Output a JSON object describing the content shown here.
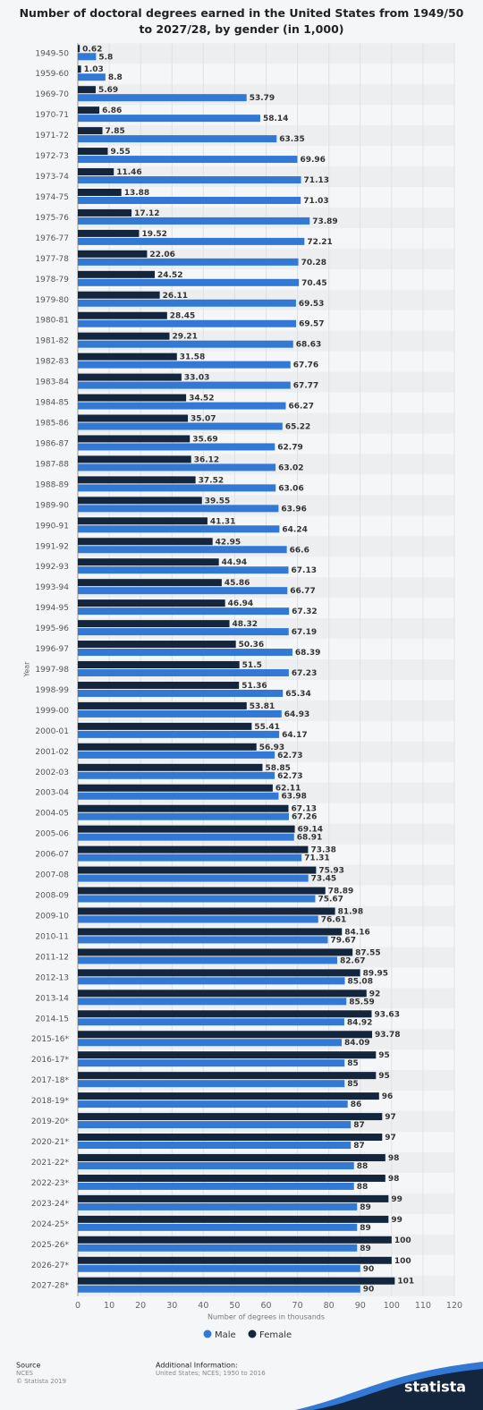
{
  "chart_data": {
    "type": "bar",
    "orientation": "horizontal",
    "title": "Number of doctoral degrees earned in the United States from 1949/50 to 2027/28, by gender (in 1,000)",
    "x_label": "Number of degrees in thousands",
    "y_label": "Year",
    "categories": [
      "1949-50",
      "1959-60",
      "1969-70",
      "1970-71",
      "1971-72",
      "1972-73",
      "1973-74",
      "1974-75",
      "1975-76",
      "1976-77",
      "1977-78",
      "1978-79",
      "1979-80",
      "1980-81",
      "1981-82",
      "1982-83",
      "1983-84",
      "1984-85",
      "1985-86",
      "1986-87",
      "1987-88",
      "1988-89",
      "1989-90",
      "1990-91",
      "1991-92",
      "1992-93",
      "1993-94",
      "1994-95",
      "1995-96",
      "1996-97",
      "1997-98",
      "1998-99",
      "1999-00",
      "2000-01",
      "2001-02",
      "2002-03",
      "2003-04",
      "2004-05",
      "2005-06",
      "2006-07",
      "2007-08",
      "2008-09",
      "2009-10",
      "2010-11",
      "2011-12",
      "2012-13",
      "2013-14",
      "2014-15",
      "2015-16*",
      "2016-17*",
      "2017-18*",
      "2018-19*",
      "2019-20*",
      "2020-21*",
      "2021-22*",
      "2022-23*",
      "2023-24*",
      "2024-25*",
      "2025-26*",
      "2026-27*",
      "2027-28*"
    ],
    "series": [
      {
        "name": "Male",
        "color": "#3279d6",
        "values": [
          5.8,
          8.8,
          53.79,
          58.14,
          63.35,
          69.96,
          71.13,
          71.03,
          73.89,
          72.21,
          70.28,
          70.45,
          69.53,
          69.57,
          68.63,
          67.76,
          67.77,
          66.27,
          65.22,
          62.79,
          63.02,
          63.06,
          63.96,
          64.24,
          66.6,
          67.13,
          66.77,
          67.32,
          67.19,
          68.39,
          67.23,
          65.34,
          64.93,
          64.17,
          62.73,
          62.73,
          63.98,
          67.26,
          68.91,
          71.31,
          73.45,
          75.67,
          76.61,
          79.67,
          82.67,
          85.08,
          85.59,
          84.92,
          84.09,
          85,
          85,
          86,
          87,
          87,
          88,
          88,
          89,
          89,
          89,
          90,
          90
        ]
      },
      {
        "name": "Female",
        "color": "#14253e",
        "values": [
          0.62,
          1.03,
          5.69,
          6.86,
          7.85,
          9.55,
          11.46,
          13.88,
          17.12,
          19.52,
          22.06,
          24.52,
          26.11,
          28.45,
          29.21,
          31.58,
          33.03,
          34.52,
          35.07,
          35.69,
          36.12,
          37.52,
          39.55,
          41.31,
          42.95,
          44.94,
          45.86,
          46.94,
          48.32,
          50.36,
          51.5,
          51.36,
          53.81,
          55.41,
          56.93,
          58.85,
          62.11,
          67.13,
          69.14,
          73.38,
          75.93,
          78.89,
          81.98,
          84.16,
          87.55,
          89.95,
          92,
          93.63,
          93.78,
          95,
          95,
          96,
          97,
          97,
          98,
          98,
          99,
          99,
          100,
          100,
          101
        ]
      }
    ],
    "xlim": [
      0,
      120
    ],
    "xticks": [
      0,
      10,
      20,
      30,
      40,
      50,
      60,
      70,
      80,
      90,
      100,
      110,
      120
    ],
    "grid": true,
    "legend": "bottom"
  },
  "footer": {
    "source_label": "Source",
    "source": "NCES",
    "copyright": "© Statista 2019",
    "additional_label": "Additional Information:",
    "additional": "United States; NCES; 1950 to 2016",
    "logo": "statista"
  }
}
